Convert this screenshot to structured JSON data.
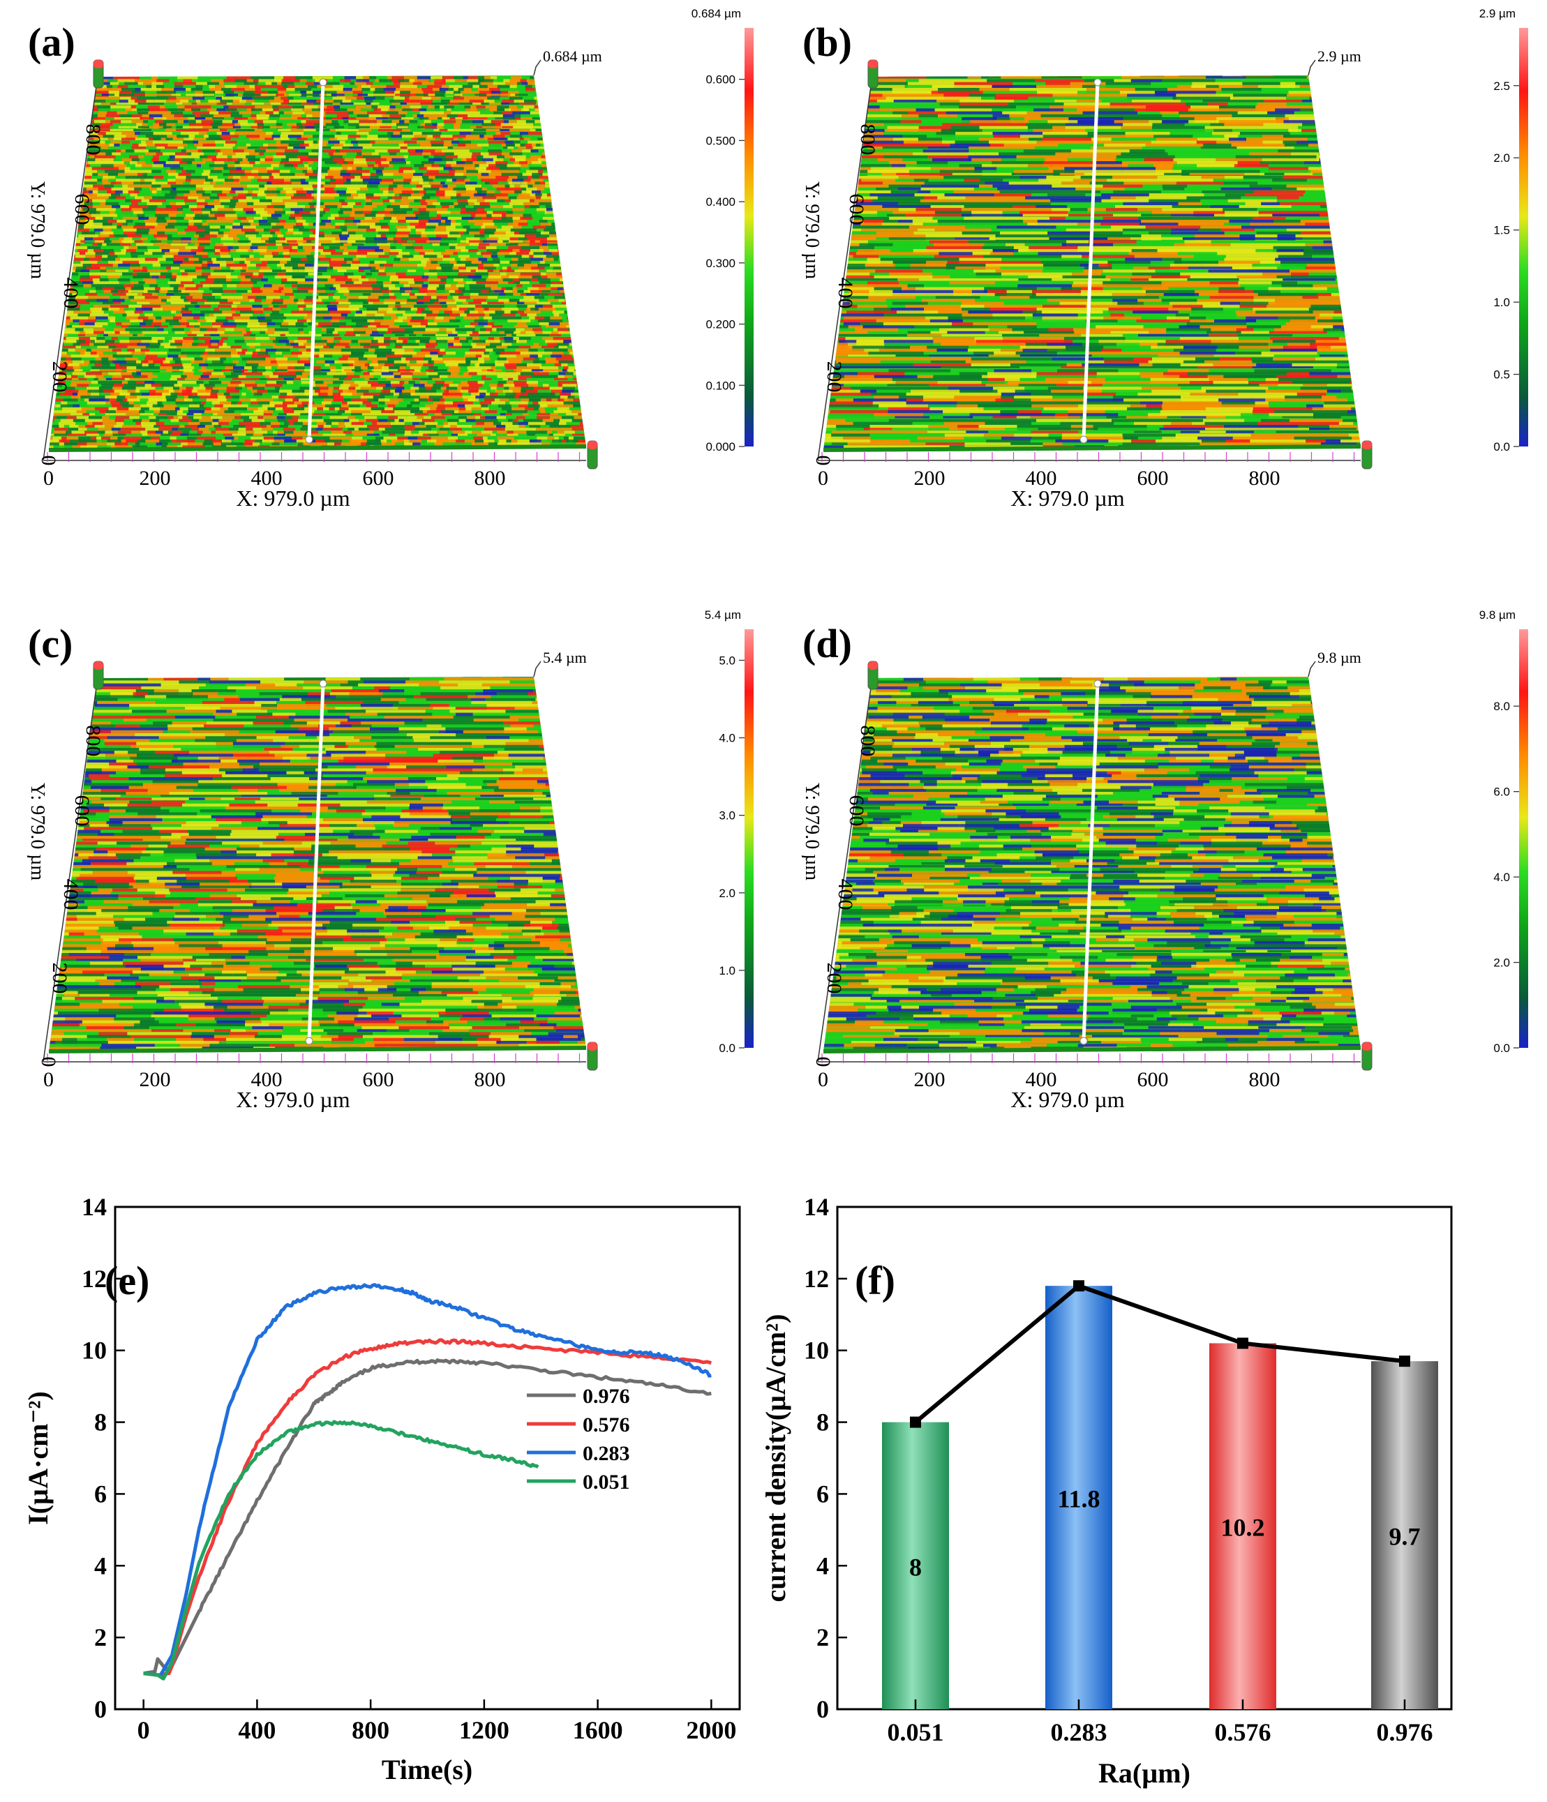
{
  "colors": {
    "surface_stops": [
      "#1a22b8",
      "#0a7a2a",
      "#19d11c",
      "#e6e617",
      "#ff8c00",
      "#ff1a1a",
      "#ff9a9a"
    ],
    "series_0976": "#6e6e6e",
    "series_0576": "#ef3b3b",
    "series_0283": "#1f6fdc",
    "series_0051": "#22a35f",
    "line_f": "#000000"
  },
  "surfaces": [
    {
      "label": "(a)",
      "max_label": "0.684 µm",
      "cbar_title": "0.684 µm",
      "cbar_ticks": [
        "0.000",
        "0.100",
        "0.200",
        "0.300",
        "0.400",
        "0.500",
        "0.600"
      ],
      "x_axis_title": "X: 979.0 µm",
      "y_axis_title": "Y: 979.0 µm",
      "x_ticks": [
        "0",
        "200",
        "400",
        "600",
        "800"
      ],
      "y_ticks": [
        "0",
        "200",
        "400",
        "600",
        "800"
      ]
    },
    {
      "label": "(b)",
      "max_label": "2.9 µm",
      "cbar_title": "2.9 µm",
      "cbar_ticks": [
        "0.0",
        "0.5",
        "1.0",
        "1.5",
        "2.0",
        "2.5"
      ],
      "x_axis_title": "X: 979.0 µm",
      "y_axis_title": "Y: 979.0 µm",
      "x_ticks": [
        "0",
        "200",
        "400",
        "600",
        "800"
      ],
      "y_ticks": [
        "0",
        "200",
        "400",
        "600",
        "800"
      ]
    },
    {
      "label": "(c)",
      "max_label": "5.4 µm",
      "cbar_title": "5.4 µm",
      "cbar_ticks": [
        "0.0",
        "1.0",
        "2.0",
        "3.0",
        "4.0",
        "5.0"
      ],
      "x_axis_title": "X: 979.0 µm",
      "y_axis_title": "Y: 979.0 µm",
      "x_ticks": [
        "0",
        "200",
        "400",
        "600",
        "800"
      ],
      "y_ticks": [
        "0",
        "200",
        "400",
        "600",
        "800"
      ]
    },
    {
      "label": "(d)",
      "max_label": "9.8 µm",
      "cbar_title": "9.8 µm",
      "cbar_ticks": [
        "0.0",
        "2.0",
        "4.0",
        "6.0",
        "8.0"
      ],
      "x_axis_title": "X: 979.0 µm",
      "y_axis_title": "Y: 979.0 µm",
      "x_ticks": [
        "0",
        "200",
        "400",
        "600",
        "800"
      ],
      "y_ticks": [
        "0",
        "200",
        "400",
        "600",
        "800"
      ]
    }
  ],
  "chart_data": [
    {
      "id": "e",
      "type": "line",
      "label": "(e)",
      "xlabel": "Time(s)",
      "ylabel": "I(µA·cm⁻²)",
      "xlim": [
        -100,
        2100
      ],
      "ylim": [
        0,
        14
      ],
      "xticks": [
        0,
        400,
        800,
        1200,
        1600,
        2000
      ],
      "yticks": [
        0,
        2,
        4,
        6,
        8,
        10,
        12,
        14
      ],
      "legend": "center-right",
      "series": [
        {
          "name": "0.976",
          "x": [
            0,
            40,
            50,
            80,
            100,
            150,
            200,
            300,
            400,
            500,
            600,
            650,
            700,
            800,
            900,
            1000,
            1100,
            1200,
            1400,
            1600,
            1800,
            2000
          ],
          "y": [
            1.0,
            1.05,
            1.4,
            1.1,
            1.2,
            2.0,
            2.8,
            4.3,
            5.8,
            7.2,
            8.5,
            8.8,
            9.1,
            9.5,
            9.65,
            9.7,
            9.7,
            9.65,
            9.45,
            9.25,
            9.05,
            8.8
          ]
        },
        {
          "name": "0.576",
          "x": [
            0,
            50,
            90,
            100,
            150,
            200,
            300,
            400,
            500,
            600,
            700,
            800,
            900,
            1000,
            1100,
            1200,
            1400,
            1600,
            1800,
            2000
          ],
          "y": [
            1.0,
            0.95,
            1.0,
            1.2,
            2.6,
            3.8,
            5.8,
            7.4,
            8.5,
            9.3,
            9.8,
            10.05,
            10.2,
            10.25,
            10.25,
            10.2,
            10.05,
            9.95,
            9.8,
            9.65
          ]
        },
        {
          "name": "0.283",
          "x": [
            0,
            60,
            100,
            150,
            200,
            300,
            400,
            500,
            600,
            700,
            800,
            900,
            950,
            1000,
            1100,
            1200,
            1300,
            1400,
            1500,
            1600,
            1700,
            1800,
            1900,
            2000
          ],
          "y": [
            1.0,
            0.95,
            1.5,
            3.2,
            5.2,
            8.4,
            10.3,
            11.2,
            11.6,
            11.75,
            11.8,
            11.7,
            11.6,
            11.4,
            11.2,
            10.9,
            10.6,
            10.4,
            10.2,
            10.0,
            9.95,
            9.9,
            9.7,
            9.3
          ]
        },
        {
          "name": "0.051",
          "x": [
            0,
            50,
            70,
            100,
            150,
            200,
            300,
            400,
            500,
            600,
            700,
            800,
            900,
            1000,
            1100,
            1200,
            1300,
            1390
          ],
          "y": [
            1.0,
            0.95,
            0.85,
            1.3,
            2.8,
            4.2,
            6.0,
            7.1,
            7.7,
            7.95,
            8.0,
            7.9,
            7.7,
            7.5,
            7.3,
            7.1,
            6.95,
            6.75
          ]
        }
      ]
    },
    {
      "id": "f",
      "type": "bar",
      "label": "(f)",
      "xlabel": "Ra(µm)",
      "ylabel": "current density(µA/cm²)",
      "ylim": [
        0,
        14
      ],
      "yticks": [
        0,
        2,
        4,
        6,
        8,
        10,
        12,
        14
      ],
      "categories": [
        "0.051",
        "0.283",
        "0.576",
        "0.976"
      ],
      "values": [
        8,
        11.8,
        10.2,
        9.7
      ],
      "data_labels": [
        "8",
        "11.8",
        "10.2",
        "9.7"
      ],
      "bar_colors": [
        "#22a35f",
        "#1f6fdc",
        "#ef3b3b",
        "#6e6e6e"
      ],
      "line_overlay": true
    }
  ]
}
